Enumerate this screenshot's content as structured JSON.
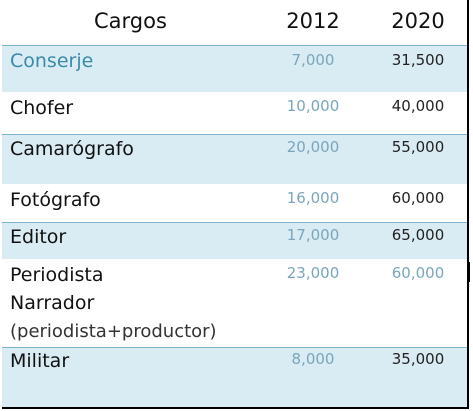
{
  "table": {
    "header": {
      "cargo": "Cargos",
      "y2012": "2012",
      "y2020": "2020"
    },
    "rows": [
      {
        "cargo": "Conserje",
        "v2012": "7,000",
        "v2020": "31,500"
      },
      {
        "cargo": "Chofer",
        "v2012": "10,000",
        "v2020": "40,000"
      },
      {
        "cargo": "Camarógrafo",
        "v2012": "20,000",
        "v2020": "55,000"
      },
      {
        "cargo": "Fotógrafo",
        "v2012": "16,000",
        "v2020": "60,000"
      },
      {
        "cargo": "Editor",
        "v2012": "17,000",
        "v2020": "65,000"
      },
      {
        "cargo": "Periodista",
        "cargo_line2": "Narrador",
        "cargo_line3": "(periodista+productor)",
        "v2012": "23,000",
        "v2020": "60,000"
      },
      {
        "cargo": "Militar",
        "v2012": "8,000",
        "v2020": "35,000"
      }
    ]
  },
  "colors": {
    "band": "#d9ebf3",
    "accent": "#3a8aa8",
    "muted_value": "#7aa6bb"
  }
}
